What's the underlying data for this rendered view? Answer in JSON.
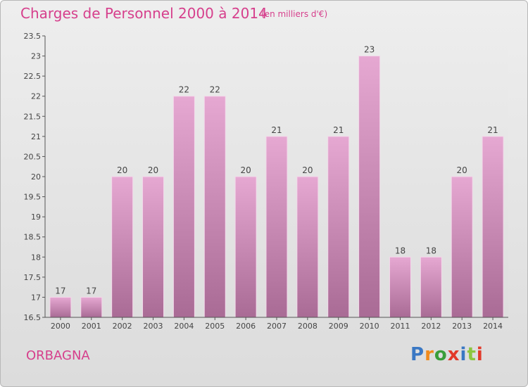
{
  "header": {
    "title": "Charges de Personnel 2000 à 2014",
    "subtitle": "(en milliers d'€)"
  },
  "footer": {
    "commune": "ORBAGNA",
    "logo_letters": [
      "P",
      "r",
      "o",
      "x",
      "i",
      "t",
      "i"
    ]
  },
  "colors": {
    "title": "#d63f8c",
    "bar_top": "#e6a8d2",
    "bar_bottom": "#a96b95",
    "logo": [
      "#3a78c4",
      "#f08a1c",
      "#3a9e3a",
      "#e23a2a",
      "#3a78c4",
      "#8cc63f",
      "#e23a2a"
    ]
  },
  "chart_data": {
    "type": "bar",
    "title": "Charges de Personnel 2000 à 2014",
    "categories": [
      "2000",
      "2001",
      "2002",
      "2003",
      "2004",
      "2005",
      "2006",
      "2007",
      "2008",
      "2009",
      "2010",
      "2011",
      "2012",
      "2013",
      "2014"
    ],
    "values": [
      17,
      17,
      20,
      20,
      22,
      22,
      20,
      21,
      20,
      21,
      23,
      18,
      18,
      20,
      21
    ],
    "data_labels": [
      "17",
      "17",
      "20",
      "20",
      "22",
      "22",
      "20",
      "21",
      "20",
      "21",
      "23",
      "18",
      "18",
      "20",
      "21"
    ],
    "ylim": [
      16.5,
      23.5
    ],
    "yticks": [
      16.5,
      17,
      17.5,
      18,
      18.5,
      19,
      19.5,
      20,
      20.5,
      21,
      21.5,
      22,
      22.5,
      23,
      23.5
    ],
    "ytick_labels": [
      "16.5",
      "17",
      "17.5",
      "18",
      "18.5",
      "19",
      "19.5",
      "20",
      "20.5",
      "21",
      "21.5",
      "22",
      "22.5",
      "23",
      "23.5"
    ],
    "grid": false,
    "legend": "none"
  }
}
